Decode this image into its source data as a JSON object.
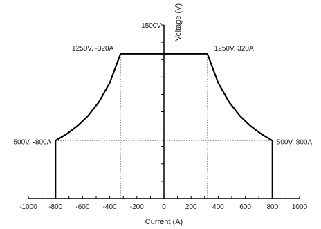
{
  "chart_data": {
    "type": "line",
    "xlabel": "Current (A)",
    "ylabel": "Voltage (V)",
    "xlim": [
      -1000,
      1000
    ],
    "ylim": [
      0,
      1500
    ],
    "x_ticks": [
      -1000,
      -800,
      -600,
      -400,
      -200,
      0,
      200,
      400,
      600,
      800,
      1000
    ],
    "x_tick_labels": [
      "-1000",
      "-800",
      "-600",
      "-400",
      "-200",
      "0",
      "200",
      "400",
      "600",
      "800",
      "1000"
    ],
    "y_top_label": "1500V",
    "grid": false,
    "series": [
      {
        "points": [
          [
            -800,
            0
          ],
          [
            -800,
            500
          ],
          [
            -720,
            556
          ],
          [
            -640,
            625
          ],
          [
            -560,
            714
          ],
          [
            -480,
            833
          ],
          [
            -400,
            1000
          ],
          [
            -320,
            1250
          ],
          [
            320,
            1250
          ],
          [
            400,
            1000
          ],
          [
            480,
            833
          ],
          [
            560,
            714
          ],
          [
            640,
            625
          ],
          [
            720,
            556
          ],
          [
            800,
            500
          ],
          [
            800,
            0
          ]
        ]
      }
    ],
    "annotations": [
      {
        "label": "1250V, -320A",
        "x": -320,
        "y": 1250
      },
      {
        "label": "1250V, 320A",
        "x": 320,
        "y": 1250
      },
      {
        "label": "500V, -800A",
        "x": -800,
        "y": 500
      },
      {
        "label": "500V, 800A",
        "x": 800,
        "y": 500
      }
    ],
    "reference_lines": [
      {
        "x": -320,
        "from_y": 0,
        "to_y": 1250
      },
      {
        "x": 320,
        "from_y": 0,
        "to_y": 1250
      },
      {
        "y": 500,
        "from_x": -800,
        "to_x": 800
      }
    ]
  }
}
